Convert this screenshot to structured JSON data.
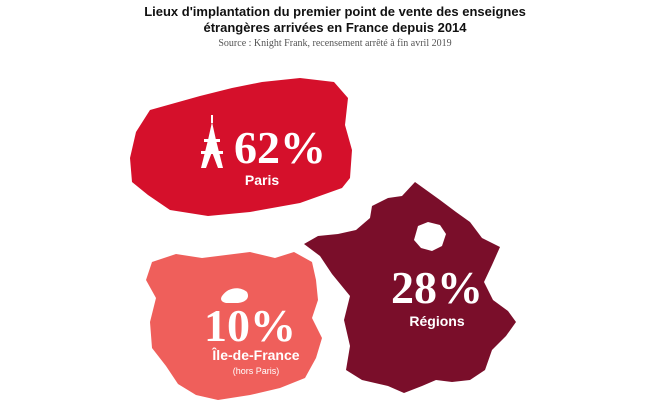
{
  "header": {
    "title_line1": "Lieux d'implantation du premier point de vente des enseignes",
    "title_line2": "étrangères arrivées en France  depuis 2014",
    "source": "Source : Knight Frank, recensement arrêté à fin avril 2019"
  },
  "chart_data": {
    "type": "other",
    "regions": [
      {
        "label": "Paris",
        "value": 62,
        "value_text": "62%",
        "color": "#d5102b"
      },
      {
        "label": "Régions",
        "value": 28,
        "value_text": "28%",
        "color": "#7a0e2a"
      },
      {
        "label": "Île-de-France",
        "value": 10,
        "value_text": "10%",
        "sublabel": "(hors Paris)",
        "color": "#ef5f5b"
      }
    ]
  },
  "icons": {
    "paris": "eiffel-tower-icon"
  }
}
